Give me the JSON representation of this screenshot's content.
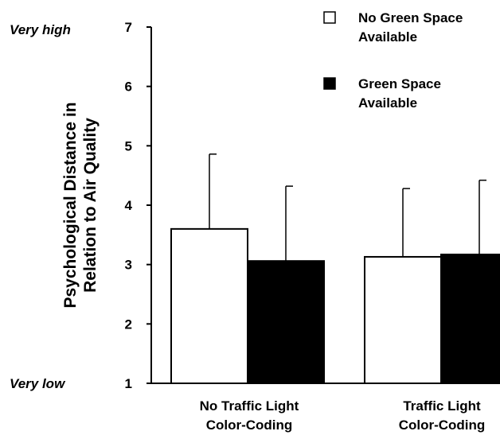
{
  "chart_data": {
    "type": "bar",
    "ylabel": [
      "Psychological Distance in",
      "Relation to Air Quality"
    ],
    "ylim": [
      1,
      7
    ],
    "yticks": [
      1,
      2,
      3,
      4,
      5,
      6,
      7
    ],
    "y_anchor_labels": {
      "high": "Very high",
      "low": "Very low"
    },
    "categories": [
      [
        "No Traffic Light",
        "Color-Coding"
      ],
      [
        "Traffic Light",
        "Color-Coding"
      ]
    ],
    "series": [
      {
        "name": [
          "No Green Space",
          "Available"
        ],
        "fill": "#ffffff",
        "values": [
          3.6,
          3.13
        ],
        "error_upper": [
          4.86,
          4.28
        ]
      },
      {
        "name": [
          "Green Space",
          "Available"
        ],
        "fill": "#000000",
        "values": [
          3.06,
          3.17
        ],
        "error_upper": [
          4.32,
          4.42
        ]
      }
    ],
    "grid": false,
    "legend_position": "top-right"
  }
}
